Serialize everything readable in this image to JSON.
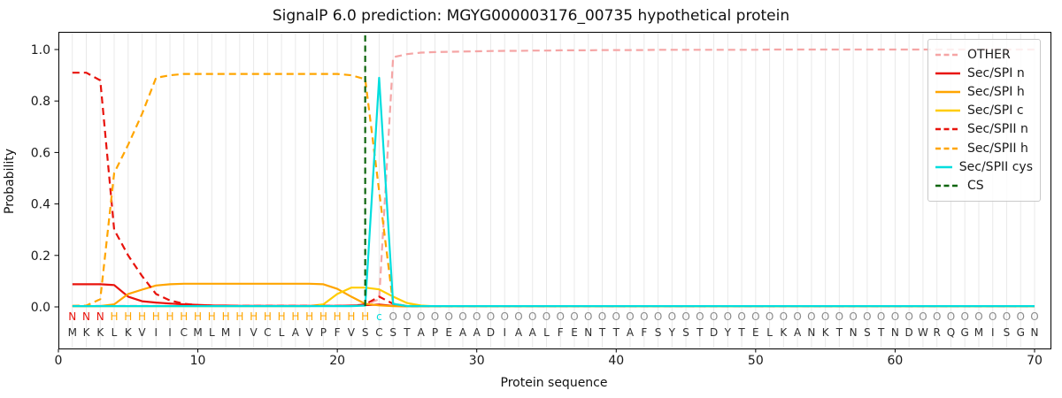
{
  "title": "SignalP 6.0 prediction: MGYG000003176_00735 hypothetical protein",
  "axes": {
    "xlabel": "Protein sequence",
    "ylabel": "Probability",
    "xticks": [
      0,
      10,
      20,
      30,
      40,
      50,
      60,
      70
    ],
    "yticks": [
      "0.0",
      "0.2",
      "0.4",
      "0.6",
      "0.8",
      "1.0"
    ]
  },
  "sequence": {
    "residues": "MKKLKVIICMLMIVCLAVPFVSCSTAPEAADIAALFENTTAFSYSTDYTELKANKTNSTNDWRQGMISGN",
    "annotation": "NNNHHHHHHHHHHHHHHHHHHHcOOOOOOOOOOOOOOOOOOOOOOOOOOOOOOOOOOOOOOOOOOOOOOO",
    "annotation_colors": {
      "N": "#e8130c",
      "H": "#ffa500",
      "c": "#00dede",
      "O": "#8c8c8c"
    },
    "residue_color": "#2e2e2e"
  },
  "chart_data": {
    "type": "line",
    "title": "SignalP 6.0 prediction: MGYG000003176_00735 hypothetical protein",
    "xlabel": "Protein sequence",
    "ylabel": "Probability",
    "x_start": 1,
    "x_step": 1,
    "n_points": 70,
    "xlim": [
      0,
      71
    ],
    "ylim": [
      0,
      1.05
    ],
    "grid": "vertical line at every residue position",
    "legend_position": "upper right",
    "colors": {
      "grid": "#e9e9e9",
      "spine": "#000000",
      "tick_text": "#1a1a1a"
    },
    "series": [
      {
        "name": "OTHER",
        "color": "#f5a5a5",
        "dash": true,
        "values": [
          0.004,
          0.004,
          0.004,
          0.004,
          0.004,
          0.004,
          0.004,
          0.004,
          0.004,
          0.004,
          0.004,
          0.004,
          0.004,
          0.004,
          0.004,
          0.004,
          0.004,
          0.004,
          0.004,
          0.004,
          0.004,
          0.008,
          0.03,
          0.97,
          0.982,
          0.988,
          0.99,
          0.991,
          0.992,
          0.993,
          0.994,
          0.995,
          0.995,
          0.996,
          0.996,
          0.997,
          0.997,
          0.997,
          0.998,
          0.998,
          0.998,
          0.998,
          0.999,
          0.999,
          0.999,
          0.999,
          0.999,
          0.999,
          0.999,
          0.999
        ],
        "tail": 1.0
      },
      {
        "name": "Sec/SPI n",
        "color": "#e8130c",
        "dash": false,
        "values": [
          0.088,
          0.088,
          0.088,
          0.085,
          0.04,
          0.022,
          0.017,
          0.013,
          0.01,
          0.008,
          0.006,
          0.005,
          0.004,
          0.004,
          0.004,
          0.004,
          0.004,
          0.004,
          0.004,
          0.004,
          0.005,
          0.007,
          0.009,
          0.004,
          0.002
        ],
        "tail": 0.002
      },
      {
        "name": "Sec/SPI h",
        "color": "#ffa500",
        "dash": false,
        "values": [
          0.003,
          0.003,
          0.003,
          0.01,
          0.05,
          0.067,
          0.083,
          0.088,
          0.09,
          0.09,
          0.09,
          0.09,
          0.09,
          0.09,
          0.09,
          0.09,
          0.09,
          0.09,
          0.088,
          0.07,
          0.04,
          0.012,
          0.006,
          0.003,
          0.002
        ],
        "tail": 0.002
      },
      {
        "name": "Sec/SPI c",
        "color": "#ffcc00",
        "dash": false,
        "values": [
          0.003,
          0.003,
          0.003,
          0.003,
          0.003,
          0.003,
          0.003,
          0.003,
          0.003,
          0.003,
          0.003,
          0.003,
          0.003,
          0.003,
          0.003,
          0.003,
          0.003,
          0.003,
          0.01,
          0.05,
          0.075,
          0.075,
          0.068,
          0.04,
          0.015,
          0.005,
          0.002
        ],
        "tail": 0.002
      },
      {
        "name": "Sec/SPII n",
        "color": "#e8130c",
        "dash": true,
        "values": [
          0.91,
          0.91,
          0.88,
          0.3,
          0.2,
          0.12,
          0.05,
          0.025,
          0.012,
          0.007,
          0.005,
          0.004,
          0.004,
          0.004,
          0.004,
          0.004,
          0.004,
          0.004,
          0.004,
          0.004,
          0.004,
          0.01,
          0.04,
          0.012,
          0.003
        ],
        "tail": 0.003
      },
      {
        "name": "Sec/SPII h",
        "color": "#ffa500",
        "dash": true,
        "values": [
          0.004,
          0.005,
          0.03,
          0.52,
          0.63,
          0.75,
          0.89,
          0.9,
          0.905,
          0.905,
          0.905,
          0.905,
          0.905,
          0.905,
          0.905,
          0.905,
          0.905,
          0.905,
          0.905,
          0.905,
          0.9,
          0.885,
          0.45,
          0.012,
          0.004
        ],
        "tail": 0.003
      },
      {
        "name": "Sec/SPII cys",
        "color": "#00dede",
        "dash": false,
        "values": [
          0.003,
          0.003,
          0.003,
          0.003,
          0.003,
          0.003,
          0.003,
          0.003,
          0.003,
          0.003,
          0.003,
          0.003,
          0.003,
          0.003,
          0.003,
          0.003,
          0.003,
          0.003,
          0.003,
          0.003,
          0.003,
          0.005,
          0.89,
          0.012,
          0.003
        ],
        "tail": 0.003
      },
      {
        "name": "CS",
        "color": "#0d650d",
        "dash": true,
        "marker": "vline",
        "position": 22,
        "values": [],
        "tail": 0
      }
    ]
  }
}
